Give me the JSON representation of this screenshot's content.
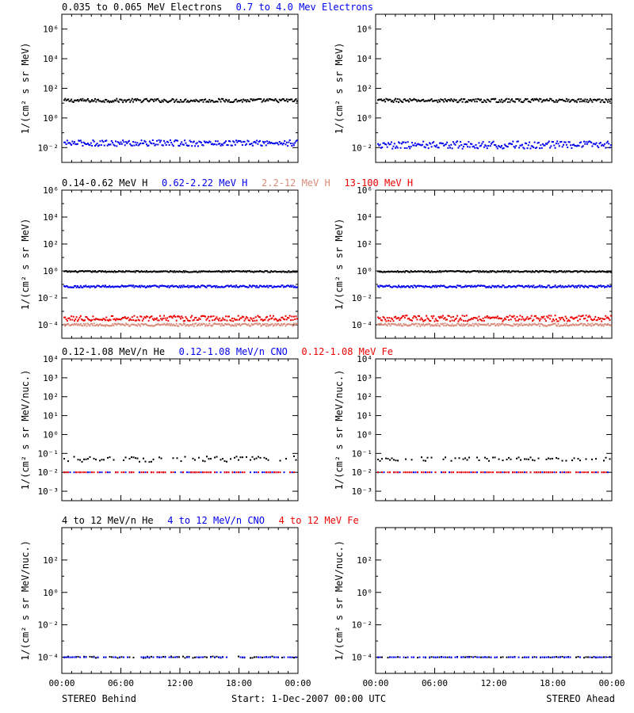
{
  "colors": {
    "black": "#000000",
    "blue": "#0000ee",
    "salmon": "#d98a7a",
    "red": "#ee0000"
  },
  "rows": [
    {
      "ylabel": "1/(cm² s sr MeV)",
      "ymin_exp": -3,
      "ymax_exp": 7,
      "tick_exps": [
        -2,
        0,
        2,
        4,
        6
      ],
      "legend": [
        {
          "text": "0.035 to 0.065 MeV Electrons",
          "color": "black"
        },
        {
          "text": "0.7 to 4.0 Mev Electrons",
          "color": "blue"
        }
      ]
    },
    {
      "ylabel": "1/(cm² s sr MeV)",
      "ymin_exp": -5,
      "ymax_exp": 6,
      "tick_exps": [
        -4,
        -2,
        0,
        2,
        4,
        6
      ],
      "legend": [
        {
          "text": "0.14-0.62 MeV H",
          "color": "black"
        },
        {
          "text": "0.62-2.22 MeV H",
          "color": "blue"
        },
        {
          "text": "2.2-12 MeV H",
          "color": "salmon"
        },
        {
          "text": "13-100 MeV H",
          "color": "red"
        }
      ]
    },
    {
      "ylabel": "1/(cm² s sr MeV/nuc.)",
      "ymin_exp": -3.5,
      "ymax_exp": 4,
      "tick_exps": [
        -3,
        -2,
        -1,
        0,
        1,
        2,
        3,
        4
      ],
      "legend": [
        {
          "text": "0.12-1.08 MeV/n He",
          "color": "black"
        },
        {
          "text": "0.12-1.08 MeV/n CNO",
          "color": "blue"
        },
        {
          "text": "0.12-1.08 MeV Fe",
          "color": "red"
        }
      ]
    },
    {
      "ylabel": "1/(cm² s sr MeV/nuc.)",
      "ymin_exp": -5,
      "ymax_exp": 4,
      "tick_exps": [
        -4,
        -2,
        0,
        2
      ],
      "legend": [
        {
          "text": "4 to 12 MeV/n He",
          "color": "black"
        },
        {
          "text": "4 to 12 MeV/n CNO",
          "color": "blue"
        },
        {
          "text": "4 to 12 MeV Fe",
          "color": "red"
        }
      ]
    }
  ],
  "x_ticks": [
    "00:00",
    "06:00",
    "12:00",
    "18:00",
    "00:00"
  ],
  "footer": {
    "left": "STEREO Behind",
    "center": "Start:  1-Dec-2007 00:00 UTC",
    "right": "STEREO Ahead"
  },
  "chart_data": {
    "type": "scatter",
    "x_unit": "hours since 1-Dec-2007 00:00 UTC",
    "x_range": [
      0,
      24
    ],
    "y_scale": "log",
    "panels": [
      {
        "row": 0,
        "spacecraft": "STEREO Behind",
        "series": [
          {
            "name": "0.035 to 0.065 MeV Electrons",
            "color": "black",
            "level": 15,
            "scatter_dex": 0.12,
            "sparse": false
          },
          {
            "name": "0.7 to 4.0 Mev Electrons",
            "color": "blue",
            "level": 0.02,
            "scatter_dex": 0.2,
            "sparse": false
          }
        ]
      },
      {
        "row": 0,
        "spacecraft": "STEREO Ahead",
        "series": [
          {
            "name": "0.035 to 0.065 MeV Electrons",
            "color": "black",
            "level": 15,
            "scatter_dex": 0.12,
            "sparse": false
          },
          {
            "name": "0.7 to 4.0 Mev Electrons",
            "color": "blue",
            "level": 0.015,
            "scatter_dex": 0.25,
            "sparse": false
          }
        ]
      },
      {
        "row": 1,
        "spacecraft": "STEREO Behind",
        "series": [
          {
            "name": "0.14-0.62 MeV H",
            "color": "black",
            "level": 0.9,
            "scatter_dex": 0.05,
            "sparse": false
          },
          {
            "name": "0.62-2.22 MeV H",
            "color": "blue",
            "level": 0.07,
            "scatter_dex": 0.08,
            "sparse": false
          },
          {
            "name": "2.2-12 MeV H",
            "color": "salmon",
            "level": 0.0001,
            "scatter_dex": 0.1,
            "sparse": false
          },
          {
            "name": "13-100 MeV H",
            "color": "red",
            "level": 0.0003,
            "scatter_dex": 0.2,
            "sparse": false
          }
        ]
      },
      {
        "row": 1,
        "spacecraft": "STEREO Ahead",
        "series": [
          {
            "name": "0.14-0.62 MeV H",
            "color": "black",
            "level": 0.9,
            "scatter_dex": 0.05,
            "sparse": false
          },
          {
            "name": "0.62-2.22 MeV H",
            "color": "blue",
            "level": 0.07,
            "scatter_dex": 0.08,
            "sparse": false
          },
          {
            "name": "2.2-12 MeV H",
            "color": "salmon",
            "level": 0.0001,
            "scatter_dex": 0.1,
            "sparse": false
          },
          {
            "name": "13-100 MeV H",
            "color": "red",
            "level": 0.0003,
            "scatter_dex": 0.22,
            "sparse": false
          }
        ]
      },
      {
        "row": 2,
        "spacecraft": "STEREO Behind",
        "series": [
          {
            "name": "0.12-1.08 MeV/n He",
            "color": "black",
            "level": 0.05,
            "scatter_dex": 0.15,
            "sparse": true
          },
          {
            "name": "0.12-1.08 MeV/n CNO",
            "color": "blue",
            "level": 0.01,
            "scatter_dex": 0,
            "sparse": true
          },
          {
            "name": "0.12-1.08 MeV Fe",
            "color": "red",
            "level": 0.01,
            "scatter_dex": 0,
            "sparse": true
          }
        ]
      },
      {
        "row": 2,
        "spacecraft": "STEREO Ahead",
        "series": [
          {
            "name": "0.12-1.08 MeV/n He",
            "color": "black",
            "level": 0.05,
            "scatter_dex": 0.1,
            "sparse": true
          },
          {
            "name": "0.12-1.08 MeV/n CNO",
            "color": "blue",
            "level": 0.01,
            "scatter_dex": 0,
            "sparse": true
          },
          {
            "name": "0.12-1.08 MeV Fe",
            "color": "red",
            "level": 0.01,
            "scatter_dex": 0,
            "sparse": true
          }
        ]
      },
      {
        "row": 3,
        "spacecraft": "STEREO Behind",
        "series": [
          {
            "name": "4 to 12 MeV/n He",
            "color": "black",
            "level": 0.0001,
            "scatter_dex": 0.05,
            "sparse": true
          },
          {
            "name": "4 to 12 MeV/n CNO",
            "color": "blue",
            "level": 0.0001,
            "scatter_dex": 0,
            "sparse": true
          }
        ]
      },
      {
        "row": 3,
        "spacecraft": "STEREO Ahead",
        "series": [
          {
            "name": "4 to 12 MeV/n He",
            "color": "black",
            "level": 0.0001,
            "scatter_dex": 0.03,
            "sparse": true
          },
          {
            "name": "4 to 12 MeV/n CNO",
            "color": "blue",
            "level": 0.0001,
            "scatter_dex": 0,
            "sparse": true
          }
        ]
      }
    ]
  }
}
